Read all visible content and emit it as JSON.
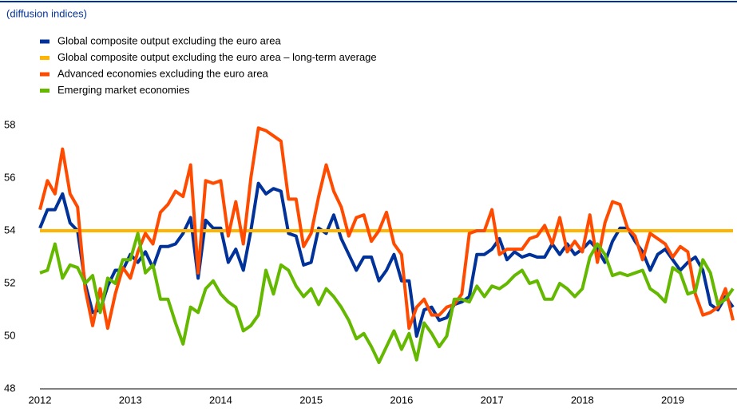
{
  "chart_data": {
    "type": "line",
    "subtitle": "(diffusion indices)",
    "categories": [
      "2012",
      null,
      null,
      null,
      null,
      null,
      null,
      null,
      null,
      null,
      null,
      null,
      "2013",
      null,
      null,
      null,
      null,
      null,
      null,
      null,
      null,
      null,
      null,
      null,
      "2014",
      null,
      null,
      null,
      null,
      null,
      null,
      null,
      null,
      null,
      null,
      null,
      "2015",
      null,
      null,
      null,
      null,
      null,
      null,
      null,
      null,
      null,
      null,
      null,
      "2016",
      null,
      null,
      null,
      null,
      null,
      null,
      null,
      null,
      null,
      null,
      null,
      "2017",
      null,
      null,
      null,
      null,
      null,
      null,
      null,
      null,
      null,
      null,
      null,
      "2018",
      null,
      null,
      null,
      null,
      null,
      null,
      null,
      null,
      null,
      null,
      null,
      "2019",
      null,
      null,
      null,
      null,
      null,
      null,
      null,
      null
    ],
    "series": [
      {
        "name": "Global composite output excluding the euro area",
        "color": "#003299",
        "values": [
          54.1,
          54.8,
          54.8,
          55.4,
          54.3,
          54.0,
          52.0,
          50.9,
          51.0,
          51.9,
          52.5,
          52.5,
          53.1,
          52.8,
          53.2,
          52.6,
          53.4,
          53.4,
          53.5,
          53.9,
          54.5,
          52.2,
          54.4,
          54.1,
          54.1,
          52.8,
          53.3,
          52.5,
          54.0,
          55.8,
          55.4,
          55.6,
          55.5,
          53.9,
          53.8,
          52.7,
          52.8,
          54.1,
          53.9,
          54.6,
          53.7,
          53.1,
          52.5,
          53.0,
          53.0,
          52.1,
          52.5,
          53.1,
          52.1,
          52.1,
          50.0,
          51.0,
          51.1,
          50.6,
          50.7,
          51.2,
          51.3,
          51.5,
          53.1,
          53.1,
          53.3,
          53.7,
          52.9,
          53.2,
          53.0,
          53.1,
          53.0,
          53.0,
          53.5,
          53.1,
          53.5,
          53.1,
          53.3,
          53.6,
          53.3,
          52.8,
          53.6,
          54.1,
          54.1,
          53.6,
          53.2,
          52.5,
          53.1,
          53.3,
          52.9,
          52.5,
          52.8,
          53.0,
          52.5,
          51.2,
          51.0,
          51.5,
          51.1
        ]
      },
      {
        "name": "Global composite output excluding the euro area – long-term average",
        "color": "#ffb400",
        "values": [
          54,
          54,
          54,
          54,
          54,
          54,
          54,
          54,
          54,
          54,
          54,
          54,
          54,
          54,
          54,
          54,
          54,
          54,
          54,
          54,
          54,
          54,
          54,
          54,
          54,
          54,
          54,
          54,
          54,
          54,
          54,
          54,
          54,
          54,
          54,
          54,
          54,
          54,
          54,
          54,
          54,
          54,
          54,
          54,
          54,
          54,
          54,
          54,
          54,
          54,
          54,
          54,
          54,
          54,
          54,
          54,
          54,
          54,
          54,
          54,
          54,
          54,
          54,
          54,
          54,
          54,
          54,
          54,
          54,
          54,
          54,
          54,
          54,
          54,
          54,
          54,
          54,
          54,
          54,
          54,
          54,
          54,
          54,
          54,
          54,
          54,
          54,
          54,
          54,
          54,
          54,
          54,
          54
        ]
      },
      {
        "name": "Advanced economies excluding the euro area",
        "color": "#ff4b00",
        "values": [
          54.8,
          55.9,
          55.4,
          57.1,
          55.4,
          54.9,
          51.8,
          50.4,
          51.8,
          50.3,
          51.6,
          52.6,
          52.2,
          53.2,
          53.9,
          53.5,
          54.7,
          55.0,
          55.5,
          55.3,
          56.5,
          52.4,
          55.9,
          55.8,
          55.9,
          53.8,
          55.1,
          53.5,
          56.0,
          57.9,
          57.8,
          57.6,
          57.4,
          55.2,
          55.2,
          53.4,
          53.9,
          55.3,
          56.5,
          55.5,
          54.9,
          53.8,
          54.5,
          54.6,
          53.6,
          54.0,
          54.7,
          53.5,
          53.1,
          50.3,
          51.1,
          51.4,
          50.8,
          50.8,
          51.1,
          51.2,
          51.6,
          53.9,
          54.0,
          54.0,
          54.8,
          53.1,
          53.3,
          53.3,
          53.3,
          53.7,
          53.8,
          54.2,
          53.5,
          54.5,
          53.2,
          53.6,
          53.2,
          54.6,
          52.8,
          54.3,
          55.1,
          55.0,
          54.1,
          53.8,
          52.9,
          53.9,
          53.7,
          53.5,
          53.0,
          53.4,
          53.2,
          51.6,
          50.8,
          50.9,
          51.1,
          51.8,
          50.6
        ]
      },
      {
        "name": "Emerging market economies",
        "color": "#65b800",
        "values": [
          52.4,
          52.5,
          53.5,
          52.2,
          52.7,
          52.6,
          52.0,
          52.3,
          50.9,
          52.2,
          52.0,
          52.9,
          52.9,
          53.9,
          52.4,
          52.7,
          51.4,
          51.4,
          50.5,
          49.7,
          51.1,
          50.9,
          51.8,
          52.1,
          51.6,
          51.3,
          51.1,
          50.2,
          50.4,
          50.8,
          52.5,
          51.6,
          52.7,
          52.5,
          51.9,
          51.5,
          51.8,
          51.2,
          51.8,
          51.5,
          51.1,
          50.6,
          49.9,
          50.1,
          49.6,
          49.0,
          49.6,
          50.2,
          49.5,
          50.1,
          49.1,
          50.5,
          50.1,
          49.6,
          50.0,
          51.4,
          51.4,
          51.3,
          51.9,
          51.5,
          51.9,
          51.8,
          52.0,
          52.3,
          52.5,
          52.0,
          52.1,
          51.4,
          51.4,
          52.0,
          51.8,
          51.5,
          51.8,
          53.0,
          53.5,
          53.1,
          52.3,
          52.4,
          52.3,
          52.4,
          52.5,
          51.8,
          51.6,
          51.3,
          52.6,
          52.4,
          51.6,
          51.7,
          52.9,
          52.4,
          51.2,
          51.4,
          51.8
        ]
      }
    ],
    "ylim": [
      48,
      58
    ],
    "yticks": [
      48,
      50,
      52,
      54,
      56,
      58
    ]
  }
}
